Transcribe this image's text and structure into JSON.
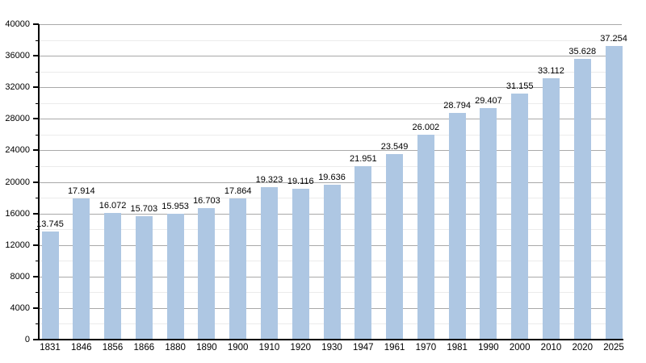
{
  "chart_data": {
    "type": "bar",
    "title": "",
    "xlabel": "",
    "ylabel": "",
    "categories": [
      "1831",
      "1846",
      "1856",
      "1866",
      "1880",
      "1890",
      "1900",
      "1910",
      "1920",
      "1930",
      "1947",
      "1961",
      "1970",
      "1981",
      "1990",
      "2000",
      "2010",
      "2020",
      "2025"
    ],
    "values": [
      13745,
      17914,
      16072,
      15703,
      15953,
      16703,
      17864,
      19323,
      19116,
      19636,
      21951,
      23549,
      26002,
      28794,
      29407,
      31155,
      33112,
      35628,
      37254
    ],
    "value_labels": [
      "13.745",
      "17.914",
      "16.072",
      "15.703",
      "15.953",
      "16.703",
      "17.864",
      "19.323",
      "19.116",
      "19.636",
      "21.951",
      "23.549",
      "26.002",
      "28.794",
      "29.407",
      "31.155",
      "33.112",
      "35.628",
      "37.254"
    ],
    "ylim": [
      0,
      40000
    ],
    "y_major_step": 4000,
    "y_minor_step": 2000,
    "y_tick_labels": [
      "0",
      "4000",
      "8000",
      "12000",
      "16000",
      "20000",
      "24000",
      "28000",
      "32000",
      "36000",
      "40000"
    ],
    "grid": true,
    "legend_position": "none",
    "colors": {
      "bar": "#aec7e3",
      "grid_major": "#a9a9a9",
      "grid_minor": "#ebebeb",
      "axis": "#000000",
      "text": "#000000",
      "background": "#ffffff"
    }
  }
}
